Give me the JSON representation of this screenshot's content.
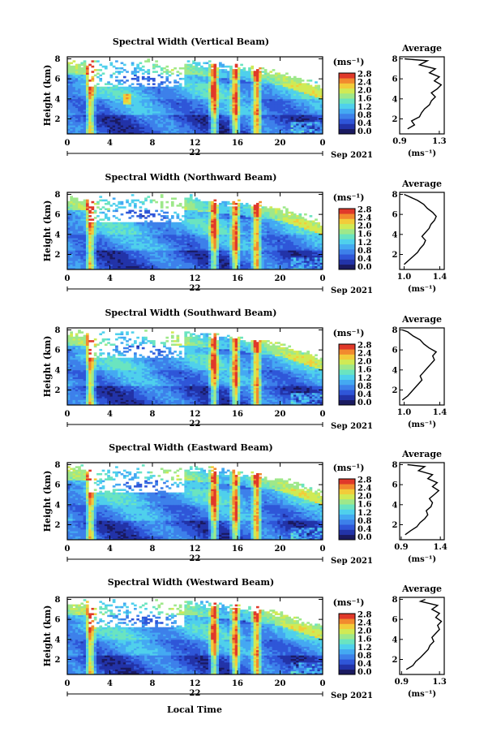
{
  "figure": {
    "date_label": "Sep 2021",
    "day_label": "22",
    "xlabel": "Local Time",
    "ylabel": "Height (km)",
    "unit_label": "(ms⁻¹)",
    "avg_title": "Average",
    "avg_xlabel": "(ms⁻¹)"
  },
  "colormap": [
    "#1a1a60",
    "#2233a8",
    "#2f56d8",
    "#3d80ea",
    "#44a9f2",
    "#4fd0ec",
    "#6ae4c0",
    "#9ee88a",
    "#d0ea55",
    "#f2cc3a",
    "#f28a2e",
    "#e0392a"
  ],
  "chart_data": [
    {
      "type": "heatmap",
      "title": "Spectral Width (Vertical Beam)",
      "x_ticks": [
        "0",
        "4",
        "8",
        "12",
        "16",
        "20",
        "0"
      ],
      "y_ticks": [
        "2",
        "4",
        "6",
        "8"
      ],
      "xlim": [
        0,
        24
      ],
      "ylim": [
        0.5,
        8.2
      ],
      "colorbar_ticks": [
        "0.0",
        "0.4",
        "0.8",
        "1.2",
        "1.6",
        "2.0",
        "2.4",
        "2.8"
      ],
      "average": {
        "x_ticks": [
          "0.9",
          "1.3"
        ],
        "xlim": [
          0.9,
          1.35
        ],
        "ylim": [
          0.5,
          8.2
        ],
        "y_ticks": [
          "2",
          "4",
          "6",
          "8"
        ],
        "points": [
          [
            0.98,
            1.0
          ],
          [
            1.05,
            1.4
          ],
          [
            1.02,
            1.8
          ],
          [
            1.1,
            2.2
          ],
          [
            1.12,
            2.6
          ],
          [
            1.15,
            3.0
          ],
          [
            1.2,
            3.4
          ],
          [
            1.22,
            3.8
          ],
          [
            1.26,
            4.2
          ],
          [
            1.22,
            4.6
          ],
          [
            1.28,
            5.0
          ],
          [
            1.32,
            5.4
          ],
          [
            1.25,
            5.8
          ],
          [
            1.3,
            6.2
          ],
          [
            1.2,
            6.6
          ],
          [
            1.26,
            7.0
          ],
          [
            1.1,
            7.4
          ],
          [
            1.18,
            7.8
          ],
          [
            0.95,
            8.0
          ]
        ]
      }
    },
    {
      "type": "heatmap",
      "title": "Spectral Width (Northward Beam)",
      "x_ticks": [
        "0",
        "4",
        "8",
        "12",
        "16",
        "20",
        "0"
      ],
      "y_ticks": [
        "2",
        "4",
        "6",
        "8"
      ],
      "xlim": [
        0,
        24
      ],
      "ylim": [
        0.5,
        8.2
      ],
      "colorbar_ticks": [
        "0.0",
        "0.4",
        "0.8",
        "1.2",
        "1.6",
        "2.0",
        "2.4",
        "2.8"
      ],
      "average": {
        "x_ticks": [
          "1.0",
          "1.4"
        ],
        "xlim": [
          0.95,
          1.45
        ],
        "ylim": [
          0.5,
          8.2
        ],
        "y_ticks": [
          "2",
          "4",
          "6",
          "8"
        ],
        "points": [
          [
            1.0,
            1.0
          ],
          [
            1.05,
            1.4
          ],
          [
            1.1,
            1.8
          ],
          [
            1.15,
            2.2
          ],
          [
            1.18,
            2.6
          ],
          [
            1.22,
            3.0
          ],
          [
            1.24,
            3.4
          ],
          [
            1.2,
            3.8
          ],
          [
            1.24,
            4.2
          ],
          [
            1.28,
            4.6
          ],
          [
            1.3,
            5.0
          ],
          [
            1.34,
            5.4
          ],
          [
            1.36,
            5.8
          ],
          [
            1.32,
            6.2
          ],
          [
            1.26,
            6.6
          ],
          [
            1.22,
            7.0
          ],
          [
            1.15,
            7.4
          ],
          [
            1.05,
            7.8
          ],
          [
            1.0,
            8.0
          ]
        ]
      }
    },
    {
      "type": "heatmap",
      "title": "Spectral Width (Southward Beam)",
      "x_ticks": [
        "0",
        "4",
        "8",
        "12",
        "16",
        "20",
        "0"
      ],
      "y_ticks": [
        "2",
        "4",
        "6",
        "8"
      ],
      "xlim": [
        0,
        24
      ],
      "ylim": [
        0.5,
        8.2
      ],
      "colorbar_ticks": [
        "0.0",
        "0.4",
        "0.8",
        "1.2",
        "1.6",
        "2.0",
        "2.4",
        "2.8"
      ],
      "average": {
        "x_ticks": [
          "1.0",
          "1.4"
        ],
        "xlim": [
          0.95,
          1.45
        ],
        "ylim": [
          0.5,
          8.2
        ],
        "y_ticks": [
          "2",
          "4",
          "6",
          "8"
        ],
        "points": [
          [
            0.98,
            1.0
          ],
          [
            1.04,
            1.4
          ],
          [
            1.08,
            1.8
          ],
          [
            1.12,
            2.2
          ],
          [
            1.16,
            2.6
          ],
          [
            1.2,
            3.0
          ],
          [
            1.18,
            3.4
          ],
          [
            1.22,
            3.8
          ],
          [
            1.26,
            4.2
          ],
          [
            1.3,
            4.6
          ],
          [
            1.34,
            5.0
          ],
          [
            1.32,
            5.4
          ],
          [
            1.36,
            5.8
          ],
          [
            1.28,
            6.2
          ],
          [
            1.22,
            6.6
          ],
          [
            1.18,
            7.0
          ],
          [
            1.1,
            7.4
          ],
          [
            1.04,
            7.8
          ],
          [
            0.98,
            8.0
          ]
        ]
      }
    },
    {
      "type": "heatmap",
      "title": "Spectral Width (Eastward Beam)",
      "x_ticks": [
        "0",
        "4",
        "8",
        "12",
        "16",
        "20",
        "0"
      ],
      "y_ticks": [
        "2",
        "4",
        "6",
        "8"
      ],
      "xlim": [
        0,
        24
      ],
      "ylim": [
        0.5,
        8.2
      ],
      "colorbar_ticks": [
        "0.0",
        "0.4",
        "0.8",
        "1.2",
        "1.6",
        "2.0",
        "2.4",
        "2.8"
      ],
      "average": {
        "x_ticks": [
          "0.9",
          "1.4"
        ],
        "xlim": [
          0.88,
          1.45
        ],
        "ylim": [
          0.5,
          8.2
        ],
        "y_ticks": [
          "2",
          "4",
          "6",
          "8"
        ],
        "points": [
          [
            0.95,
            1.0
          ],
          [
            1.02,
            1.4
          ],
          [
            1.1,
            1.8
          ],
          [
            1.14,
            2.2
          ],
          [
            1.2,
            2.6
          ],
          [
            1.24,
            3.0
          ],
          [
            1.22,
            3.4
          ],
          [
            1.28,
            3.8
          ],
          [
            1.3,
            4.2
          ],
          [
            1.26,
            4.6
          ],
          [
            1.32,
            5.0
          ],
          [
            1.38,
            5.4
          ],
          [
            1.3,
            5.8
          ],
          [
            1.36,
            6.2
          ],
          [
            1.24,
            6.6
          ],
          [
            1.3,
            7.0
          ],
          [
            1.12,
            7.4
          ],
          [
            1.2,
            7.8
          ],
          [
            0.98,
            8.0
          ]
        ]
      }
    },
    {
      "type": "heatmap",
      "title": "Spectral Width (Westward Beam)",
      "x_ticks": [
        "0",
        "4",
        "8",
        "12",
        "16",
        "20",
        "0"
      ],
      "y_ticks": [
        "2",
        "4",
        "6",
        "8"
      ],
      "xlim": [
        0,
        24
      ],
      "ylim": [
        0.5,
        8.2
      ],
      "colorbar_ticks": [
        "0.0",
        "0.4",
        "0.8",
        "1.2",
        "1.6",
        "2.0",
        "2.4",
        "2.8"
      ],
      "average": {
        "x_ticks": [
          "0.9",
          "1.3"
        ],
        "xlim": [
          0.88,
          1.35
        ],
        "ylim": [
          0.5,
          8.2
        ],
        "y_ticks": [
          "2",
          "4",
          "6",
          "8"
        ],
        "points": [
          [
            0.95,
            1.0
          ],
          [
            1.02,
            1.4
          ],
          [
            1.05,
            1.8
          ],
          [
            1.1,
            2.2
          ],
          [
            1.14,
            2.6
          ],
          [
            1.18,
            3.0
          ],
          [
            1.2,
            3.4
          ],
          [
            1.24,
            3.8
          ],
          [
            1.22,
            4.2
          ],
          [
            1.26,
            4.6
          ],
          [
            1.3,
            5.0
          ],
          [
            1.28,
            5.4
          ],
          [
            1.32,
            5.8
          ],
          [
            1.26,
            6.2
          ],
          [
            1.3,
            6.6
          ],
          [
            1.22,
            7.0
          ],
          [
            1.28,
            7.4
          ],
          [
            1.1,
            7.8
          ],
          [
            1.15,
            8.0
          ]
        ]
      }
    }
  ]
}
